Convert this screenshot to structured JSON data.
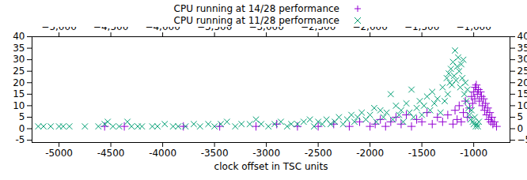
{
  "chart_data": {
    "type": "scatter",
    "xlabel": "clock offset in TSC units",
    "xlim": [
      -5260,
      -650
    ],
    "ylim": [
      -6,
      40
    ],
    "xticks": [
      -5000,
      -4500,
      -4000,
      -3500,
      -3000,
      -2500,
      -2000,
      -1500,
      -1000
    ],
    "yticks": [
      -5,
      0,
      5,
      10,
      15,
      20,
      25,
      30,
      35,
      40
    ],
    "grid": false,
    "legend": "top",
    "series": [
      {
        "name": "CPU running at 14/28 performance",
        "color": "#9400d3",
        "marker": "plus",
        "x": [
          -4560,
          -4370,
          -3800,
          -3450,
          -3100,
          -2900,
          -2700,
          -2500,
          -2350,
          -2200,
          -2100,
          -2000,
          -1950,
          -1900,
          -1850,
          -1800,
          -1750,
          -1700,
          -1650,
          -1600,
          -1550,
          -1500,
          -1450,
          -1400,
          -1350,
          -1300,
          -1250,
          -1200,
          -1180,
          -1160,
          -1140,
          -1120,
          -1100,
          -1080,
          -1060,
          -1040,
          -1020,
          -1010,
          -1000,
          -990,
          -985,
          -975,
          -965,
          -955,
          -945,
          -935,
          -925,
          -915,
          -905,
          -895,
          -885,
          -875,
          -865,
          -855,
          -845,
          -835,
          -825,
          -815,
          -800,
          -780
        ],
        "values": [
          1,
          1,
          1,
          1,
          1,
          2,
          1,
          1,
          2,
          1,
          3,
          1,
          2,
          4,
          1,
          3,
          5,
          2,
          6,
          1,
          4,
          3,
          7,
          2,
          5,
          3,
          6,
          2,
          8,
          4,
          10,
          3,
          7,
          12,
          5,
          9,
          14,
          11,
          16,
          13,
          18,
          19,
          15,
          17,
          12,
          16,
          14,
          10,
          13,
          8,
          11,
          6,
          9,
          4,
          7,
          3,
          5,
          2,
          3,
          1
        ]
      },
      {
        "name": "CPU running at 11/28 performance",
        "color": "#009e73",
        "marker": "times",
        "x": [
          -5200,
          -5150,
          -5080,
          -5000,
          -4960,
          -4900,
          -4750,
          -4620,
          -4560,
          -4530,
          -4480,
          -4420,
          -4340,
          -4300,
          -4240,
          -4200,
          -4100,
          -4050,
          -3980,
          -3900,
          -3850,
          -3780,
          -3700,
          -3640,
          -3560,
          -3500,
          -3440,
          -3380,
          -3300,
          -3240,
          -3160,
          -3100,
          -3050,
          -2980,
          -2920,
          -2860,
          -2800,
          -2760,
          -2700,
          -2640,
          -2580,
          -2540,
          -2500,
          -2460,
          -2420,
          -2380,
          -2340,
          -2300,
          -2260,
          -2220,
          -2180,
          -2150,
          -2120,
          -2080,
          -2040,
          -2000,
          -1960,
          -1940,
          -1900,
          -1870,
          -1840,
          -1800,
          -1780,
          -1750,
          -1720,
          -1700,
          -1680,
          -1650,
          -1620,
          -1600,
          -1580,
          -1550,
          -1520,
          -1500,
          -1480,
          -1450,
          -1420,
          -1400,
          -1380,
          -1350,
          -1320,
          -1300,
          -1280,
          -1260,
          -1250,
          -1240,
          -1230,
          -1220,
          -1210,
          -1200,
          -1190,
          -1180,
          -1170,
          -1160,
          -1150,
          -1140,
          -1130,
          -1120,
          -1110,
          -1100,
          -1090,
          -1080,
          -1070,
          -1060,
          -1050,
          -1040,
          -1030,
          -1020,
          -1010,
          -1000,
          -990,
          -980,
          -970,
          -960,
          -950
        ],
        "values": [
          1,
          1,
          1,
          1,
          1,
          1,
          1,
          1,
          2,
          3,
          1,
          1,
          3,
          1,
          1,
          1,
          1,
          1,
          2,
          1,
          1,
          1,
          2,
          1,
          2,
          1,
          2,
          3,
          1,
          2,
          2,
          4,
          2,
          1,
          2,
          3,
          1,
          2,
          2,
          3,
          4,
          1,
          3,
          2,
          4,
          2,
          3,
          5,
          2,
          4,
          6,
          3,
          5,
          7,
          4,
          6,
          9,
          3,
          8,
          5,
          7,
          15,
          4,
          10,
          6,
          8,
          3,
          11,
          7,
          17,
          5,
          9,
          12,
          6,
          10,
          14,
          8,
          16,
          11,
          13,
          7,
          18,
          12,
          22,
          15,
          24,
          20,
          26,
          19,
          29,
          23,
          34,
          21,
          27,
          31,
          25,
          18,
          28,
          22,
          30,
          15,
          20,
          12,
          17,
          9,
          6,
          4,
          8,
          3,
          2,
          5,
          1,
          2,
          1,
          3
        ]
      }
    ]
  }
}
